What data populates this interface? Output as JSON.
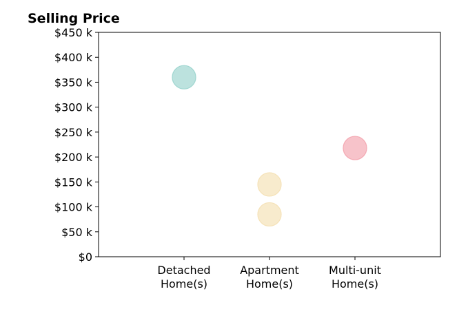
{
  "chart_data": {
    "type": "scatter",
    "title": "Selling Price",
    "categories": [
      "Detached\nHome(s)",
      "Apartment\nHome(s)",
      "Multi-unit\nHome(s)"
    ],
    "ylim": [
      0,
      450000
    ],
    "yticks": [
      0,
      50000,
      100000,
      150000,
      200000,
      250000,
      300000,
      350000,
      400000,
      450000
    ],
    "ytick_labels": [
      "$0",
      "$50 k",
      "$100 k",
      "$150 k",
      "$200 k",
      "$250 k",
      "$300 k",
      "$350 k",
      "$400 k",
      "$450 k"
    ],
    "points": [
      {
        "category": "Detached\nHome(s)",
        "value": 360000,
        "color": "#9fd6d0"
      },
      {
        "category": "Apartment\nHome(s)",
        "value": 145000,
        "color": "#f5e2b8"
      },
      {
        "category": "Apartment\nHome(s)",
        "value": 85000,
        "color": "#f5e2b8"
      },
      {
        "category": "Multi-unit\nHome(s)",
        "value": 218000,
        "color": "#f4a9b3"
      }
    ],
    "grid": false,
    "legend": false
  }
}
